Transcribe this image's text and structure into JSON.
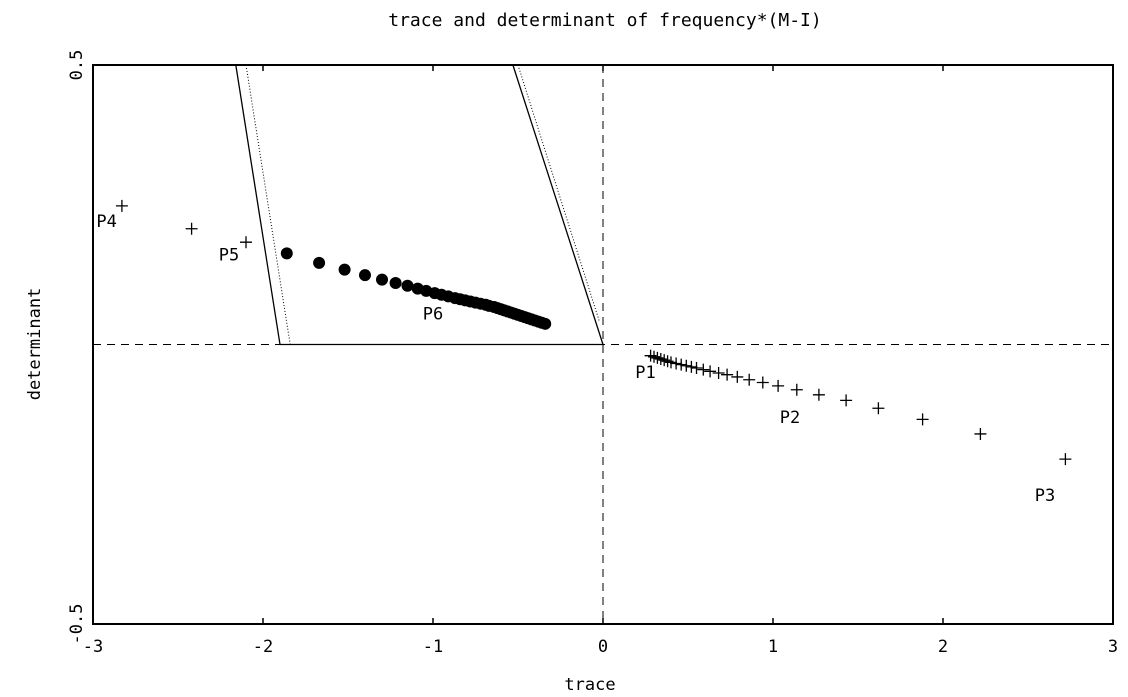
{
  "chart_data": {
    "type": "scatter",
    "title": "trace and determinant of frequency*(M-I)",
    "xlabel": "trace",
    "ylabel": "determinant",
    "xlim": [
      -3,
      3
    ],
    "ylim": [
      -0.5,
      0.5
    ],
    "xticks": [
      -3,
      -2,
      -1,
      0,
      1,
      2,
      3
    ],
    "yticks": [
      -0.5,
      0.5
    ],
    "xtick_labels": [
      "-3",
      "-2",
      "-1",
      "0",
      "1",
      "2",
      "3"
    ],
    "ytick_labels": [
      "-0.5",
      "0.5"
    ],
    "grid": false,
    "reference_lines": {
      "x": 0,
      "y": 0,
      "style": "dashed"
    },
    "region_boundary": {
      "solid": [
        [
          -2.16,
          0.5
        ],
        [
          -1.9,
          0.0
        ],
        [
          0.0,
          0.0
        ],
        [
          -0.53,
          0.5
        ]
      ],
      "dotted": [
        [
          -2.1,
          0.5
        ],
        [
          -1.84,
          0.0
        ]
      ],
      "dotted_right": [
        [
          -0.5,
          0.5
        ],
        [
          -0.02,
          0.04
        ]
      ]
    },
    "series": [
      {
        "marker": "plus",
        "x": [
          0.28,
          0.3,
          0.32,
          0.34,
          0.36,
          0.38,
          0.4,
          0.43,
          0.46,
          0.49,
          0.52,
          0.55,
          0.59,
          0.63,
          0.68,
          0.73,
          0.79,
          0.86,
          0.94,
          1.03,
          1.14,
          1.27,
          1.43,
          1.62,
          1.88,
          2.22,
          2.72
        ],
        "y": [
          -0.02,
          -0.022,
          -0.024,
          -0.026,
          -0.028,
          -0.03,
          -0.032,
          -0.034,
          -0.036,
          -0.038,
          -0.04,
          -0.042,
          -0.045,
          -0.048,
          -0.051,
          -0.054,
          -0.058,
          -0.063,
          -0.068,
          -0.074,
          -0.081,
          -0.09,
          -0.1,
          -0.114,
          -0.134,
          -0.16,
          -0.205
        ]
      },
      {
        "marker": "plus",
        "x": [
          -2.83,
          -2.42,
          -2.1
        ],
        "y": [
          0.248,
          0.207,
          0.183
        ]
      },
      {
        "marker": "filled-circle",
        "x": [
          -1.86,
          -1.67,
          -1.52,
          -1.4,
          -1.3,
          -1.22,
          -1.15,
          -1.09,
          -1.04,
          -0.99,
          -0.95,
          -0.91,
          -0.87,
          -0.84,
          -0.81,
          -0.78,
          -0.75,
          -0.72,
          -0.69,
          -0.67,
          -0.64,
          -0.62,
          -0.6,
          -0.58,
          -0.56,
          -0.54,
          -0.52,
          -0.5,
          -0.48,
          -0.46,
          -0.44,
          -0.42,
          -0.4,
          -0.38,
          -0.36,
          -0.34
        ],
        "y": [
          0.163,
          0.146,
          0.134,
          0.124,
          0.116,
          0.11,
          0.105,
          0.1,
          0.096,
          0.092,
          0.089,
          0.086,
          0.083,
          0.081,
          0.079,
          0.077,
          0.075,
          0.073,
          0.071,
          0.069,
          0.067,
          0.065,
          0.063,
          0.061,
          0.059,
          0.057,
          0.055,
          0.053,
          0.051,
          0.049,
          0.047,
          0.045,
          0.043,
          0.041,
          0.039,
          0.037
        ]
      }
    ],
    "annotations": [
      {
        "text": "P1",
        "x": 0.25,
        "y": -0.06
      },
      {
        "text": "P2",
        "x": 1.1,
        "y": -0.14
      },
      {
        "text": "P3",
        "x": 2.6,
        "y": -0.28
      },
      {
        "text": "P4",
        "x": -2.92,
        "y": 0.21
      },
      {
        "text": "P5",
        "x": -2.2,
        "y": 0.15
      },
      {
        "text": "P6",
        "x": -1.0,
        "y": 0.045
      }
    ]
  }
}
